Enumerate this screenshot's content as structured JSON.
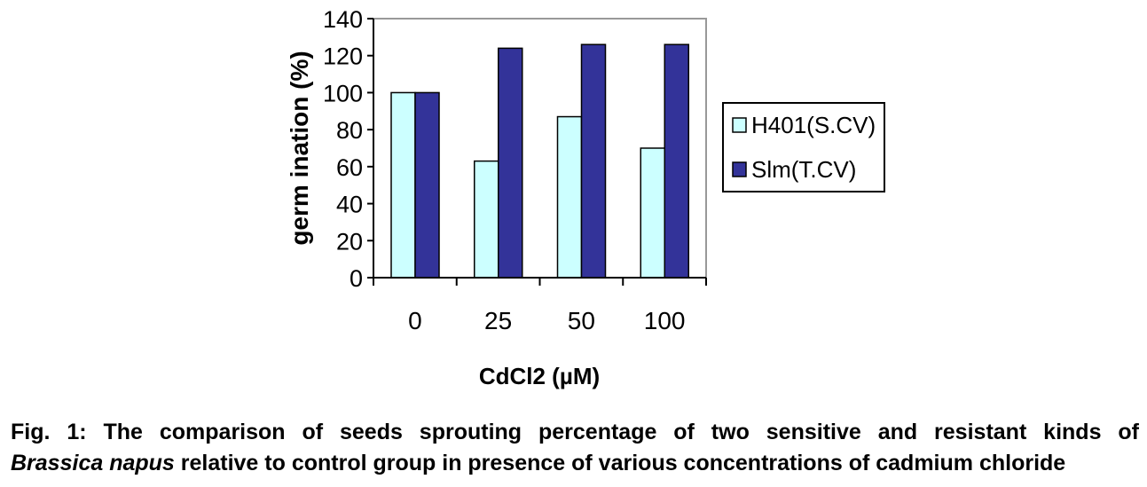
{
  "chart_data": {
    "type": "bar",
    "categories": [
      "0",
      "25",
      "50",
      "100"
    ],
    "series": [
      {
        "name": "H401(S.CV)",
        "values": [
          100,
          63,
          87,
          70
        ],
        "color": "#ccffff"
      },
      {
        "name": "Slm(T.CV)",
        "values": [
          100,
          124,
          126,
          126
        ],
        "color": "#333399"
      }
    ],
    "xlabel": "CdCl2 (µM)",
    "ylabel": "germ ination (%)",
    "ylim": [
      0,
      140
    ],
    "yticks": [
      0,
      20,
      40,
      60,
      80,
      100,
      120,
      140
    ],
    "grid": false,
    "legend_position": "right"
  },
  "caption": {
    "line1": "Fig. 1: The comparison of seeds sprouting percentage of two sensitive and resistant kinds of",
    "species": "Brassica napus",
    "line2_rest": " relative to control group in presence of various concentrations of cadmium chloride"
  }
}
